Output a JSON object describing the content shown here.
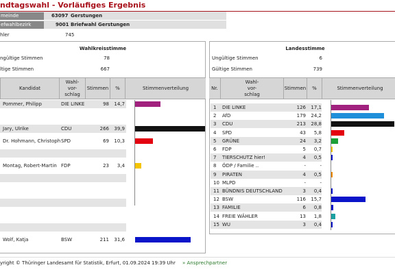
{
  "title": "ndtagswahl - Vorläufiges Ergebnis",
  "header": {
    "gemeinde_label": "meinde",
    "gemeinde_code": "63097",
    "gemeinde_name": "Gerstungen",
    "bezirk_label": "efwahlbezirk",
    "bezirk_code": "9001",
    "bezirk_name": "Briefwahl Gerstungen"
  },
  "waehler": {
    "label": "hler",
    "value": "745"
  },
  "wahlkreis": {
    "title": "Wahlkreisstimme",
    "invalid_label": "ngültige Stimmen",
    "invalid_value": "78",
    "valid_label": "ltige Stimmen",
    "valid_value": "667",
    "columns": {
      "kandidat": "Kandidat",
      "vorschlag": "Wahl-\nvor-\nschlag",
      "stimmen": "Stimmen",
      "pct": "%",
      "verteilung": "Stimmenverteilung"
    },
    "rows": [
      {
        "kandidat": "Pommer, Philipp",
        "partei": "DIE LINKE",
        "stimmen": "98",
        "pct": "14,7",
        "value": 14.7,
        "color": "#a0227e"
      },
      {
        "kandidat": "",
        "partei": "",
        "stimmen": "",
        "pct": "",
        "value": 0,
        "color": ""
      },
      {
        "kandidat": "Jary, Ulrike",
        "partei": "CDU",
        "stimmen": "266",
        "pct": "39,9",
        "value": 39.9,
        "color": "#111111"
      },
      {
        "kandidat": "Dr. Hohmann, Christoph",
        "partei": "SPD",
        "stimmen": "69",
        "pct": "10,3",
        "value": 10.3,
        "color": "#e3000f"
      },
      {
        "kandidat": "",
        "partei": "",
        "stimmen": "",
        "pct": "",
        "value": 0,
        "color": ""
      },
      {
        "kandidat": "Montag, Robert-Martin",
        "partei": "FDP",
        "stimmen": "23",
        "pct": "3,4",
        "value": 3.4,
        "color": "#f5c400"
      },
      {
        "kandidat": "",
        "partei": "",
        "stimmen": "",
        "pct": "",
        "value": 0,
        "color": ""
      },
      {
        "kandidat": "",
        "partei": "",
        "stimmen": "",
        "pct": "",
        "value": 0,
        "color": ""
      },
      {
        "kandidat": "",
        "partei": "",
        "stimmen": "",
        "pct": "",
        "value": 0,
        "color": ""
      },
      {
        "kandidat": "",
        "partei": "",
        "stimmen": "",
        "pct": "",
        "value": 0,
        "color": ""
      },
      {
        "kandidat": "",
        "partei": "",
        "stimmen": "",
        "pct": "",
        "value": 0,
        "color": ""
      },
      {
        "kandidat": "Wolf, Katja",
        "partei": "BSW",
        "stimmen": "211",
        "pct": "31,6",
        "value": 31.6,
        "color": "#0a14c8"
      }
    ]
  },
  "landes": {
    "title": "Landesstimme",
    "invalid_label": "Ungültige Stimmen",
    "invalid_value": "6",
    "valid_label": "Gültige Stimmen",
    "valid_value": "739",
    "columns": {
      "nr": "Nr.",
      "vorschlag": "Wahl-\nvor-\nschlag",
      "stimmen": "Stimmen",
      "pct": "%",
      "verteilung": "Stimmenverteilung"
    },
    "rows": [
      {
        "nr": "1",
        "partei": "DIE LINKE",
        "stimmen": "126",
        "pct": "17,1",
        "value": 17.1,
        "color": "#a0227e"
      },
      {
        "nr": "2",
        "partei": "AfD",
        "stimmen": "179",
        "pct": "24,2",
        "value": 24.2,
        "color": "#1e8fd8"
      },
      {
        "nr": "3",
        "partei": "CDU",
        "stimmen": "213",
        "pct": "28,8",
        "value": 28.8,
        "color": "#111111"
      },
      {
        "nr": "4",
        "partei": "SPD",
        "stimmen": "43",
        "pct": "5,8",
        "value": 5.8,
        "color": "#e3000f"
      },
      {
        "nr": "5",
        "partei": "GRÜNE",
        "stimmen": "24",
        "pct": "3,2",
        "value": 3.2,
        "color": "#1aa037"
      },
      {
        "nr": "6",
        "partei": "FDP",
        "stimmen": "5",
        "pct": "0,7",
        "value": 0.7,
        "color": "#f5c400"
      },
      {
        "nr": "7",
        "partei": "TIERSCHUTZ hier!",
        "stimmen": "4",
        "pct": "0,5",
        "value": 0.5,
        "color": "#0a14c8"
      },
      {
        "nr": "8",
        "partei": "ÖDP / Familie ..",
        "stimmen": "-",
        "pct": "-",
        "value": 0,
        "color": ""
      },
      {
        "nr": "9",
        "partei": "PIRATEN",
        "stimmen": "4",
        "pct": "0,5",
        "value": 0.5,
        "color": "#f08a00"
      },
      {
        "nr": "10",
        "partei": "MLPD",
        "stimmen": "-",
        "pct": "-",
        "value": 0,
        "color": ""
      },
      {
        "nr": "11",
        "partei": "BÜNDNIS DEUTSCHLAND",
        "stimmen": "3",
        "pct": "0,4",
        "value": 0.4,
        "color": "#0a14c8"
      },
      {
        "nr": "12",
        "partei": "BSW",
        "stimmen": "116",
        "pct": "15,7",
        "value": 15.7,
        "color": "#0a14c8"
      },
      {
        "nr": "13",
        "partei": "FAMILIE",
        "stimmen": "6",
        "pct": "0,8",
        "value": 0.8,
        "color": "#0a14c8"
      },
      {
        "nr": "14",
        "partei": "FREIE WÄHLER",
        "stimmen": "13",
        "pct": "1,8",
        "value": 1.8,
        "color": "#1aa0a0"
      },
      {
        "nr": "15",
        "partei": "WU",
        "stimmen": "3",
        "pct": "0,4",
        "value": 0.4,
        "color": "#0a14c8"
      }
    ]
  },
  "footer": {
    "copyright": "yright © Thüringer Landesamt für Statistik, Erfurt, 01.09.2024 19:39 Uhr",
    "link": "» Ansprechpartner"
  }
}
